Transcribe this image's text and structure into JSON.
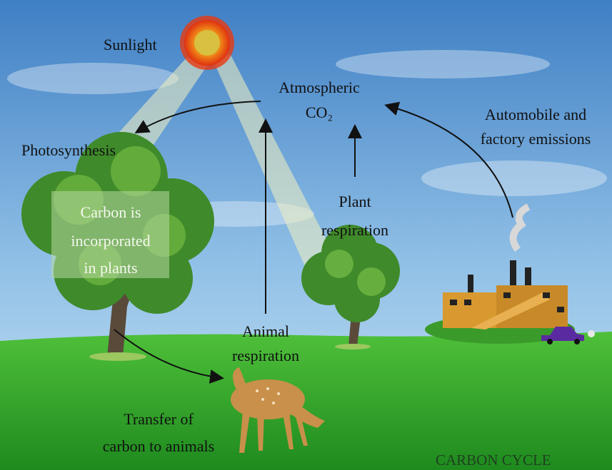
{
  "labels": {
    "sunlight": "Sunlight",
    "atmospheric_co2": [
      "Atmospheric",
      "CO₂"
    ],
    "emissions": [
      "Automobile and",
      "factory emissions"
    ],
    "photosynthesis": "Photosynthesis",
    "incorporated": [
      "Carbon is",
      "incorporated",
      "in plants"
    ],
    "plant_respiration": [
      "Plant",
      "respiration"
    ],
    "animal_respiration": [
      "Animal",
      "respiration"
    ],
    "transfer": [
      "Transfer of",
      "carbon to animals"
    ],
    "title": "CARBON CYCLE"
  }
}
